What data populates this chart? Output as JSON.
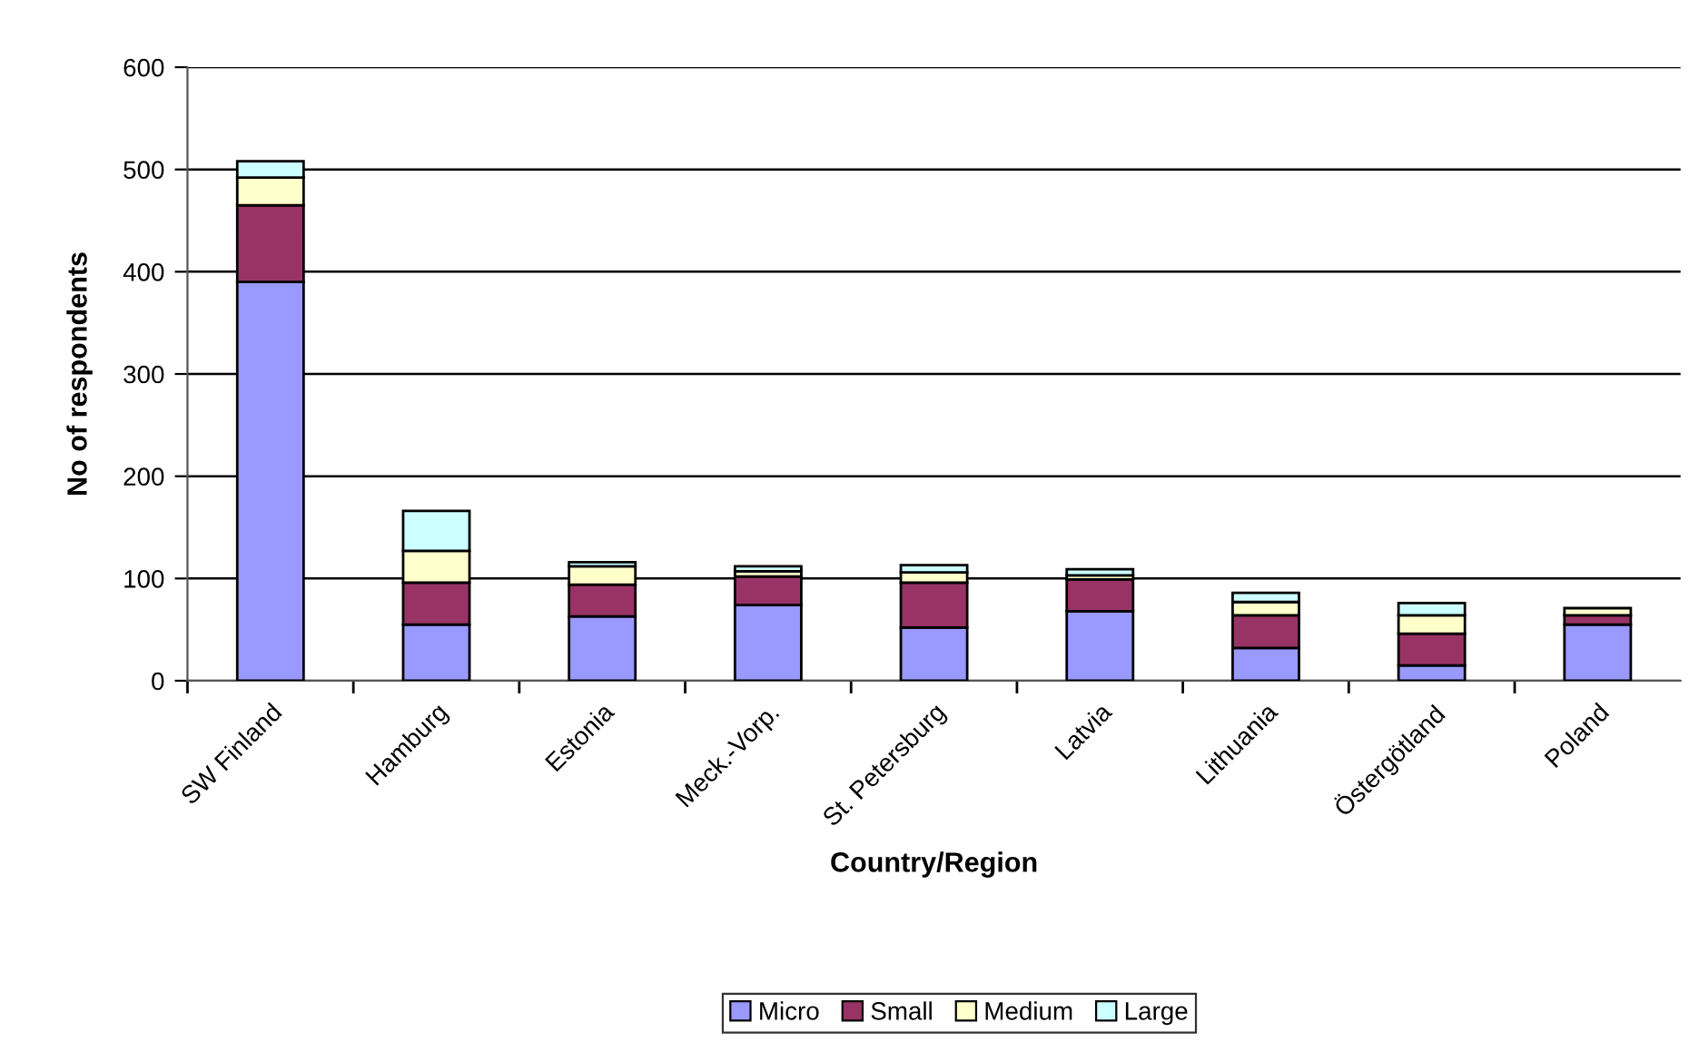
{
  "chart_data": {
    "type": "bar",
    "stacked": true,
    "xlabel": "Country/Region",
    "ylabel": "No of respondents",
    "categories": [
      "SW Finland",
      "Hamburg",
      "Estonia",
      "Meck.-Vorp.",
      "St. Petersburg",
      "Latvia",
      "Lithuania",
      "Östergötland",
      "Poland"
    ],
    "series": [
      {
        "name": "Micro",
        "color": "#9999ff",
        "values": [
          390,
          55,
          63,
          74,
          52,
          68,
          32,
          15,
          55
        ]
      },
      {
        "name": "Small",
        "color": "#993366",
        "values": [
          75,
          41,
          31,
          28,
          44,
          31,
          32,
          31,
          9
        ]
      },
      {
        "name": "Medium",
        "color": "#ffffcc",
        "values": [
          27,
          31,
          18,
          5,
          10,
          4,
          13,
          18,
          7
        ]
      },
      {
        "name": "Large",
        "color": "#ccffff",
        "values": [
          16,
          39,
          4,
          5,
          7,
          6,
          9,
          12,
          null
        ]
      }
    ],
    "ylim": [
      0,
      600
    ],
    "yticks": [
      0,
      100,
      200,
      300,
      400,
      500,
      600
    ],
    "grid": "y",
    "legend": "bottom"
  }
}
